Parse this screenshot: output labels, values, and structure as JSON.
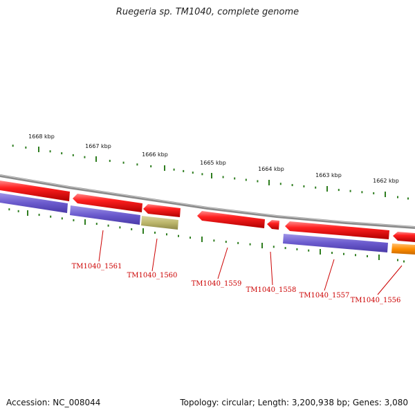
{
  "title": "Ruegeria sp. TM1040, complete genome",
  "footer": {
    "accession": "Accession: NC_008044",
    "summary": "Topology: circular; Length: 3,200,938 bp; Genes: 3,080"
  },
  "colors": {
    "backbone": "#8a8a8a",
    "cds": "#ee1111",
    "protein_bar": "#6a5acd",
    "other_bar": "#bdb76b",
    "orange_bar": "#ff8c00",
    "tick": "#2e7d1f",
    "label": "#cc0000"
  },
  "ticks": [
    {
      "label": "1668 kbp"
    },
    {
      "label": "1667 kbp"
    },
    {
      "label": "1666 kbp"
    },
    {
      "label": "1665 kbp"
    },
    {
      "label": "1664 kbp"
    },
    {
      "label": "1663 kbp"
    },
    {
      "label": "1662 kbp"
    }
  ],
  "genes": [
    {
      "label": "TM1040_1561"
    },
    {
      "label": "TM1040_1560"
    },
    {
      "label": "TM1040_1559"
    },
    {
      "label": "TM1040_1558"
    },
    {
      "label": "TM1040_1557"
    },
    {
      "label": "TM1040_1556"
    }
  ]
}
